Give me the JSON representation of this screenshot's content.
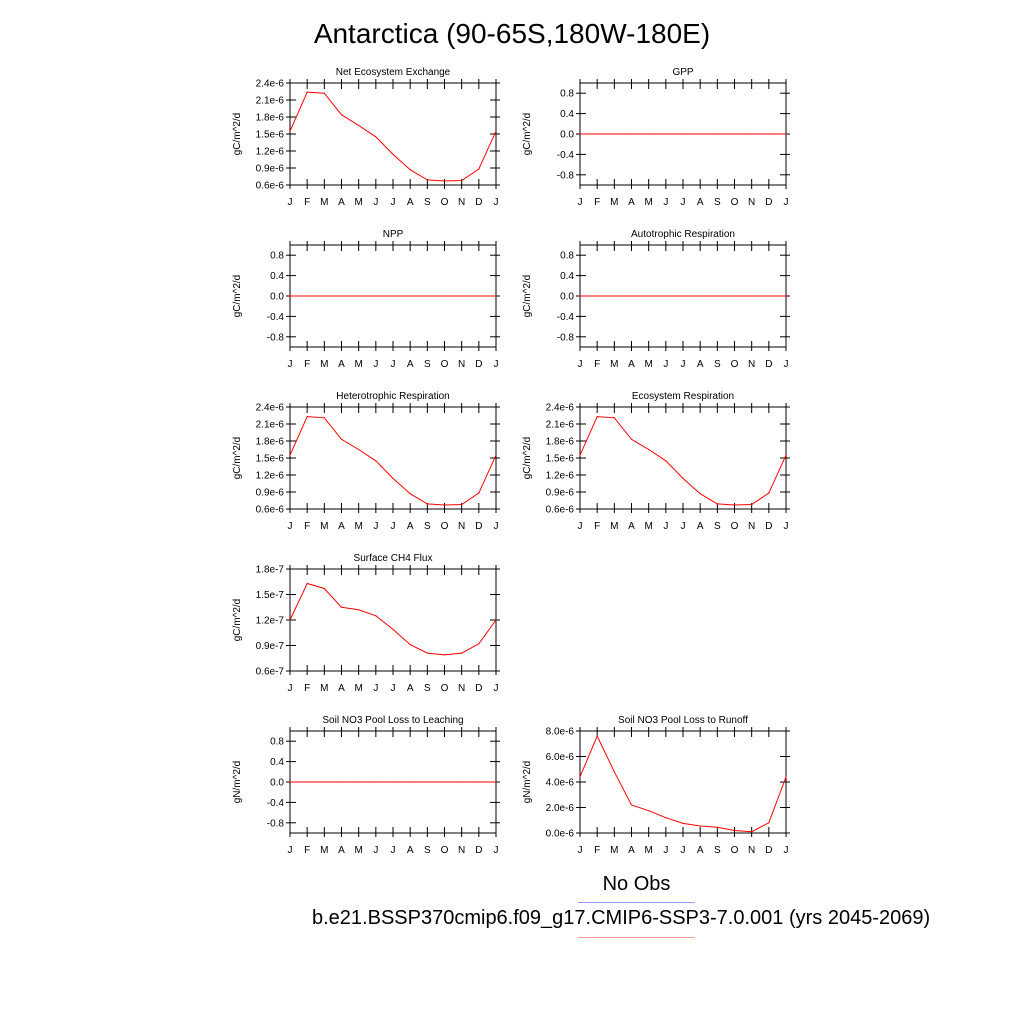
{
  "page_title": "Antarctica (90-65S,180W-180E)",
  "months": [
    "J",
    "F",
    "M",
    "A",
    "M",
    "J",
    "J",
    "A",
    "S",
    "O",
    "N",
    "D",
    "J"
  ],
  "legend": {
    "obs_label": "No Obs",
    "case_label": "b.e21.BSSP370cmip6.f09_g17.CMIP6-SSP3-7.0.001 (yrs 2045-2069)",
    "obs_color": "#0000ff",
    "case_color": "#ff0000"
  },
  "chart_data": [
    {
      "type": "line",
      "title": "Net Ecosystem Exchange",
      "ylabel": "gC/m^2/d",
      "ylim": [
        6e-07,
        2.4e-06
      ],
      "yticks": [
        6e-07,
        9e-07,
        1.2e-06,
        1.5e-06,
        1.8e-06,
        2.1e-06,
        2.4e-06
      ],
      "ytick_labels": [
        "0.6e-6",
        "0.9e-6",
        "1.2e-6",
        "1.5e-6",
        "1.8e-6",
        "2.1e-6",
        "2.4e-6"
      ],
      "x": [
        "J",
        "F",
        "M",
        "A",
        "M",
        "J",
        "J",
        "A",
        "S",
        "O",
        "N",
        "D",
        "J"
      ],
      "series": [
        {
          "values": [
            1.55e-06,
            2.24e-06,
            2.22e-06,
            1.84e-06,
            1.65e-06,
            1.45e-06,
            1.14e-06,
            8.7e-07,
            6.9e-07,
            6.7e-07,
            6.8e-07,
            8.8e-07,
            1.55e-06
          ]
        }
      ]
    },
    {
      "type": "line",
      "title": "GPP",
      "ylabel": "gC/m^2/d",
      "ylim": [
        -1,
        1
      ],
      "yticks": [
        -0.8,
        -0.4,
        0,
        0.4,
        0.8
      ],
      "ytick_labels": [
        "-0.8",
        "-0.4",
        "0.0",
        "0.4",
        "0.8"
      ],
      "x": [
        "J",
        "F",
        "M",
        "A",
        "M",
        "J",
        "J",
        "A",
        "S",
        "O",
        "N",
        "D",
        "J"
      ],
      "series": [
        {
          "values": [
            0,
            0,
            0,
            0,
            0,
            0,
            0,
            0,
            0,
            0,
            0,
            0,
            0
          ]
        }
      ]
    },
    {
      "type": "line",
      "title": "NPP",
      "ylabel": "gC/m^2/d",
      "ylim": [
        -1,
        1
      ],
      "yticks": [
        -0.8,
        -0.4,
        0,
        0.4,
        0.8
      ],
      "ytick_labels": [
        "-0.8",
        "-0.4",
        "0.0",
        "0.4",
        "0.8"
      ],
      "x": [
        "J",
        "F",
        "M",
        "A",
        "M",
        "J",
        "J",
        "A",
        "S",
        "O",
        "N",
        "D",
        "J"
      ],
      "series": [
        {
          "values": [
            0,
            0,
            0,
            0,
            0,
            0,
            0,
            0,
            0,
            0,
            0,
            0,
            0
          ]
        }
      ]
    },
    {
      "type": "line",
      "title": "Autotrophic Respiration",
      "ylabel": "gC/m^2/d",
      "ylim": [
        -1,
        1
      ],
      "yticks": [
        -0.8,
        -0.4,
        0,
        0.4,
        0.8
      ],
      "ytick_labels": [
        "-0.8",
        "-0.4",
        "0.0",
        "0.4",
        "0.8"
      ],
      "x": [
        "J",
        "F",
        "M",
        "A",
        "M",
        "J",
        "J",
        "A",
        "S",
        "O",
        "N",
        "D",
        "J"
      ],
      "series": [
        {
          "values": [
            0,
            0,
            0,
            0,
            0,
            0,
            0,
            0,
            0,
            0,
            0,
            0,
            0
          ]
        }
      ]
    },
    {
      "type": "line",
      "title": "Heterotrophic Respiration",
      "ylabel": "gC/m^2/d",
      "ylim": [
        6e-07,
        2.4e-06
      ],
      "yticks": [
        6e-07,
        9e-07,
        1.2e-06,
        1.5e-06,
        1.8e-06,
        2.1e-06,
        2.4e-06
      ],
      "ytick_labels": [
        "0.6e-6",
        "0.9e-6",
        "1.2e-6",
        "1.5e-6",
        "1.8e-6",
        "2.1e-6",
        "2.4e-6"
      ],
      "x": [
        "J",
        "F",
        "M",
        "A",
        "M",
        "J",
        "J",
        "A",
        "S",
        "O",
        "N",
        "D",
        "J"
      ],
      "series": [
        {
          "values": [
            1.55e-06,
            2.23e-06,
            2.21e-06,
            1.83e-06,
            1.65e-06,
            1.45e-06,
            1.14e-06,
            8.7e-07,
            6.9e-07,
            6.7e-07,
            6.8e-07,
            8.8e-07,
            1.55e-06
          ]
        }
      ]
    },
    {
      "type": "line",
      "title": "Ecosystem Respiration",
      "ylabel": "gC/m^2/d",
      "ylim": [
        6e-07,
        2.4e-06
      ],
      "yticks": [
        6e-07,
        9e-07,
        1.2e-06,
        1.5e-06,
        1.8e-06,
        2.1e-06,
        2.4e-06
      ],
      "ytick_labels": [
        "0.6e-6",
        "0.9e-6",
        "1.2e-6",
        "1.5e-6",
        "1.8e-6",
        "2.1e-6",
        "2.4e-6"
      ],
      "x": [
        "J",
        "F",
        "M",
        "A",
        "M",
        "J",
        "J",
        "A",
        "S",
        "O",
        "N",
        "D",
        "J"
      ],
      "series": [
        {
          "values": [
            1.55e-06,
            2.23e-06,
            2.21e-06,
            1.83e-06,
            1.65e-06,
            1.45e-06,
            1.14e-06,
            8.7e-07,
            6.9e-07,
            6.7e-07,
            6.8e-07,
            8.8e-07,
            1.55e-06
          ]
        }
      ]
    },
    {
      "type": "line",
      "title": "Surface CH4 Flux",
      "ylabel": "gC/m^2/d",
      "ylim": [
        6e-08,
        1.8e-07
      ],
      "yticks": [
        6e-08,
        9e-08,
        1.2e-07,
        1.5e-07,
        1.8e-07
      ],
      "ytick_labels": [
        "0.6e-7",
        "0.9e-7",
        "1.2e-7",
        "1.5e-7",
        "1.8e-7"
      ],
      "x": [
        "J",
        "F",
        "M",
        "A",
        "M",
        "J",
        "J",
        "A",
        "S",
        "O",
        "N",
        "D",
        "J"
      ],
      "series": [
        {
          "values": [
            1.2e-07,
            1.63e-07,
            1.57e-07,
            1.35e-07,
            1.32e-07,
            1.25e-07,
            1.09e-07,
            9.1e-08,
            8.1e-08,
            7.9e-08,
            8.1e-08,
            9.2e-08,
            1.2e-07
          ]
        }
      ]
    },
    null,
    {
      "type": "line",
      "title": "Soil NO3 Pool Loss to Leaching",
      "ylabel": "gN/m^2/d",
      "ylim": [
        -1,
        1
      ],
      "yticks": [
        -0.8,
        -0.4,
        0,
        0.4,
        0.8
      ],
      "ytick_labels": [
        "-0.8",
        "-0.4",
        "0.0",
        "0.4",
        "0.8"
      ],
      "x": [
        "J",
        "F",
        "M",
        "A",
        "M",
        "J",
        "J",
        "A",
        "S",
        "O",
        "N",
        "D",
        "J"
      ],
      "series": [
        {
          "values": [
            0,
            0,
            0,
            0,
            0,
            0,
            0,
            0,
            0,
            0,
            0,
            0,
            0
          ]
        }
      ]
    },
    {
      "type": "line",
      "title": "Soil NO3 Pool Loss to Runoff",
      "ylabel": "gN/m^2/d",
      "ylim": [
        0,
        8e-06
      ],
      "yticks": [
        0,
        2e-06,
        4e-06,
        6e-06,
        8e-06
      ],
      "ytick_labels": [
        "0.0e-6",
        "2.0e-6",
        "4.0e-6",
        "6.0e-6",
        "8.0e-6"
      ],
      "x": [
        "J",
        "F",
        "M",
        "A",
        "M",
        "J",
        "J",
        "A",
        "S",
        "O",
        "N",
        "D",
        "J"
      ],
      "series": [
        {
          "values": [
            4.4e-06,
            7.6e-06,
            4.8e-06,
            2.2e-06,
            1.75e-06,
            1.2e-06,
            7.5e-07,
            5.5e-07,
            4.5e-07,
            2e-07,
            1e-07,
            8e-07,
            4.4e-06
          ]
        }
      ]
    }
  ]
}
